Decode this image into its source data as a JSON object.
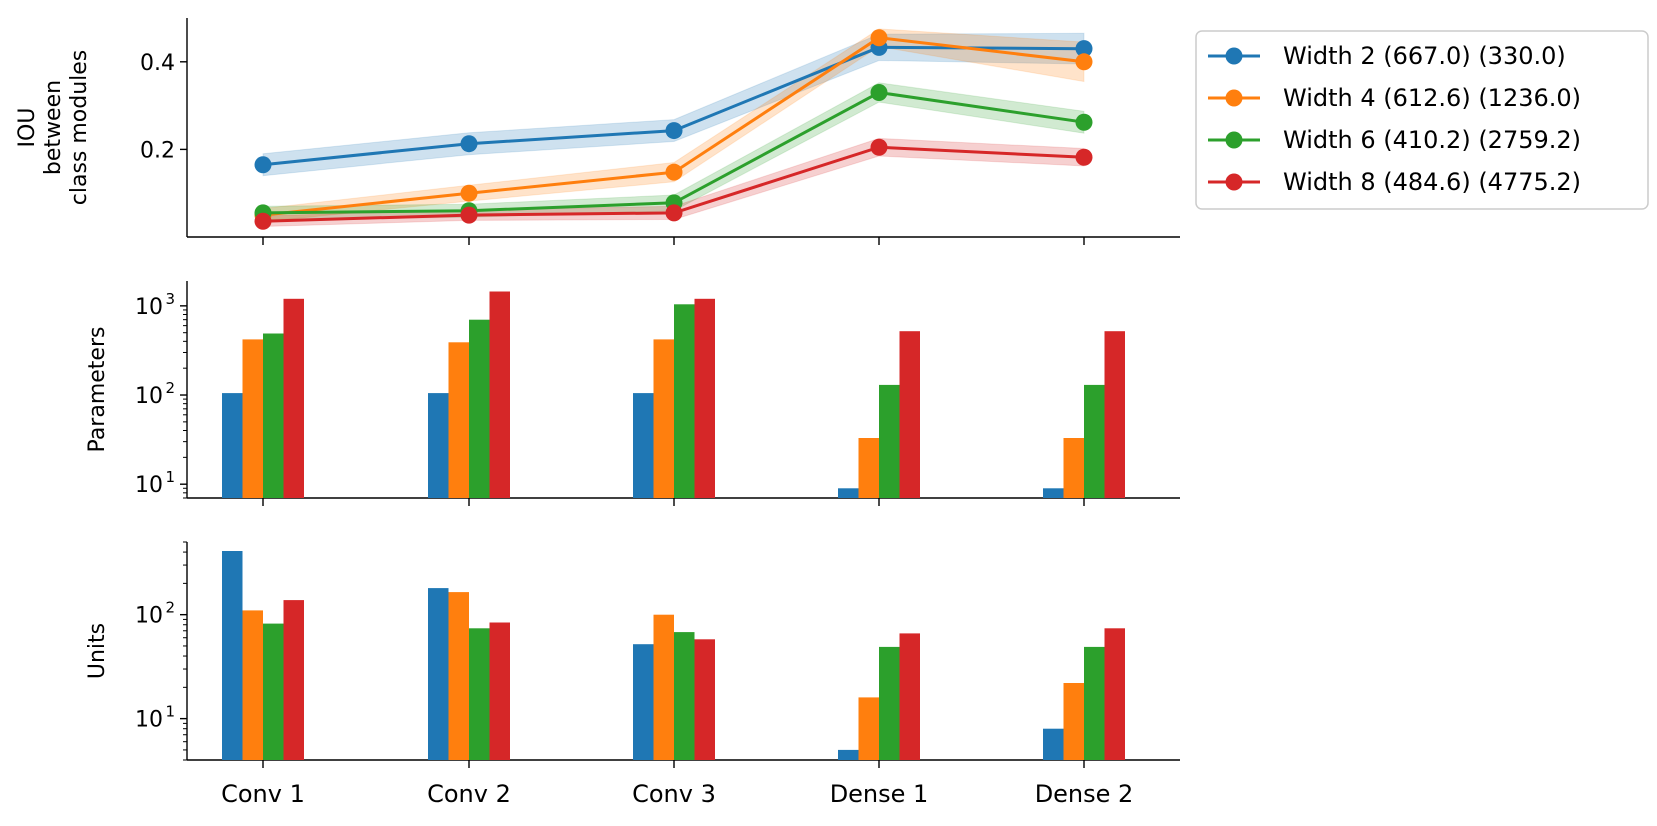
{
  "colors": {
    "series": [
      "#1f77b4",
      "#ff7f0e",
      "#2ca02c",
      "#d62728"
    ]
  },
  "categories": [
    "Conv 1",
    "Conv 2",
    "Conv 3",
    "Dense 1",
    "Dense 2"
  ],
  "series_names": [
    "Width 2 (667.0) (330.0)",
    "Width 4 (612.6) (1236.0)",
    "Width 6 (410.2) (2759.2)",
    "Width 8 (484.6) (4775.2)"
  ],
  "chart_data": [
    {
      "type": "line",
      "ylabel": [
        "IOU",
        "between",
        "class modules"
      ],
      "yticks": [
        "0.2",
        "0.4"
      ],
      "yscale": "linear",
      "ylim": [
        0.0,
        0.5
      ],
      "legend": "outside right, top",
      "series": [
        {
          "values": [
            0.165,
            0.213,
            0.243,
            0.433,
            0.43
          ],
          "band": [
            0.025,
            0.025,
            0.025,
            0.03,
            0.035
          ]
        },
        {
          "values": [
            0.05,
            0.1,
            0.148,
            0.455,
            0.4
          ],
          "band": [
            0.015,
            0.018,
            0.022,
            0.02,
            0.045
          ]
        },
        {
          "values": [
            0.055,
            0.06,
            0.078,
            0.33,
            0.262
          ],
          "band": [
            0.015,
            0.015,
            0.018,
            0.022,
            0.025
          ]
        },
        {
          "values": [
            0.036,
            0.05,
            0.055,
            0.205,
            0.182
          ],
          "band": [
            0.012,
            0.012,
            0.015,
            0.02,
            0.02
          ]
        }
      ]
    },
    {
      "type": "bar",
      "ylabel": "Parameters",
      "yscale": "log",
      "yticks": [
        "10",
        "10",
        "10"
      ],
      "ytick_exponents": [
        "1",
        "2",
        "3"
      ],
      "ylim": [
        7,
        1900
      ],
      "series": [
        {
          "values": [
            105,
            105,
            105,
            9,
            9
          ]
        },
        {
          "values": [
            420,
            390,
            420,
            33,
            33
          ]
        },
        {
          "values": [
            490,
            700,
            1040,
            130,
            130
          ]
        },
        {
          "values": [
            1200,
            1450,
            1200,
            520,
            520
          ]
        }
      ]
    },
    {
      "type": "bar",
      "ylabel": "Units",
      "yscale": "log",
      "yticks": [
        "10",
        "10"
      ],
      "ytick_exponents": [
        "1",
        "2"
      ],
      "ylim": [
        4,
        500
      ],
      "series": [
        {
          "values": [
            410,
            180,
            52,
            5,
            8
          ]
        },
        {
          "values": [
            110,
            165,
            100,
            16,
            22
          ]
        },
        {
          "values": [
            82,
            74,
            68,
            49,
            49
          ]
        },
        {
          "values": [
            138,
            84,
            58,
            66,
            74
          ]
        }
      ]
    }
  ]
}
